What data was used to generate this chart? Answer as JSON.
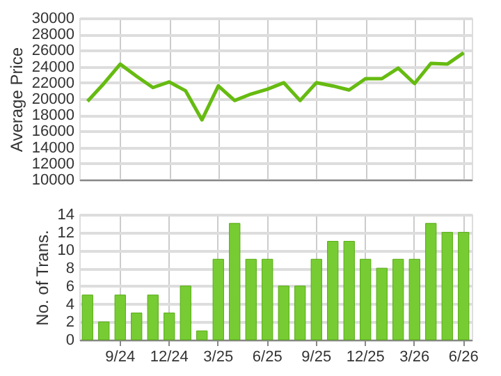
{
  "chart_data": [
    {
      "type": "line",
      "ylabel": "Average Price",
      "categories": [
        null,
        null,
        null,
        null,
        null,
        null,
        null,
        null,
        null,
        null,
        null,
        null,
        null,
        null,
        null,
        null,
        null,
        null,
        null,
        null,
        null,
        null,
        null,
        null
      ],
      "series": [
        {
          "color": "#66bb11",
          "values": [
            19700,
            21900,
            24300,
            22800,
            21400,
            22100,
            21000,
            17400,
            21600,
            19800,
            20600,
            21200,
            22000,
            19800,
            22000,
            21600,
            21100,
            22500,
            22500,
            23800,
            21900,
            24400,
            24300,
            25700
          ]
        }
      ],
      "ylim": [
        10000,
        30000
      ],
      "yticks": [
        10000,
        12000,
        14000,
        16000,
        18000,
        20000,
        22000,
        24000,
        26000,
        28000,
        30000
      ],
      "grid": true,
      "tick_labels": "y",
      "marker": "none",
      "line_style": "solid"
    },
    {
      "type": "bar",
      "ylabel": "No. of Trans.",
      "categories": [
        null,
        null,
        "9/24",
        null,
        null,
        "12/24",
        null,
        null,
        "3/25",
        null,
        null,
        "6/25",
        null,
        null,
        "9/25",
        null,
        null,
        "12/25",
        null,
        null,
        "3/26",
        null,
        null,
        "6/26"
      ],
      "series": [
        {
          "color": "#77cc33",
          "values": [
            5,
            2,
            5,
            3,
            5,
            3,
            6,
            1,
            9,
            13,
            9,
            9,
            6,
            6,
            9,
            11,
            11,
            9,
            8,
            9,
            9,
            13,
            12,
            12
          ]
        }
      ],
      "ylim": [
        0,
        14
      ],
      "yticks": [
        0,
        2,
        4,
        6,
        8,
        10,
        12,
        14
      ],
      "grid": true
    }
  ]
}
